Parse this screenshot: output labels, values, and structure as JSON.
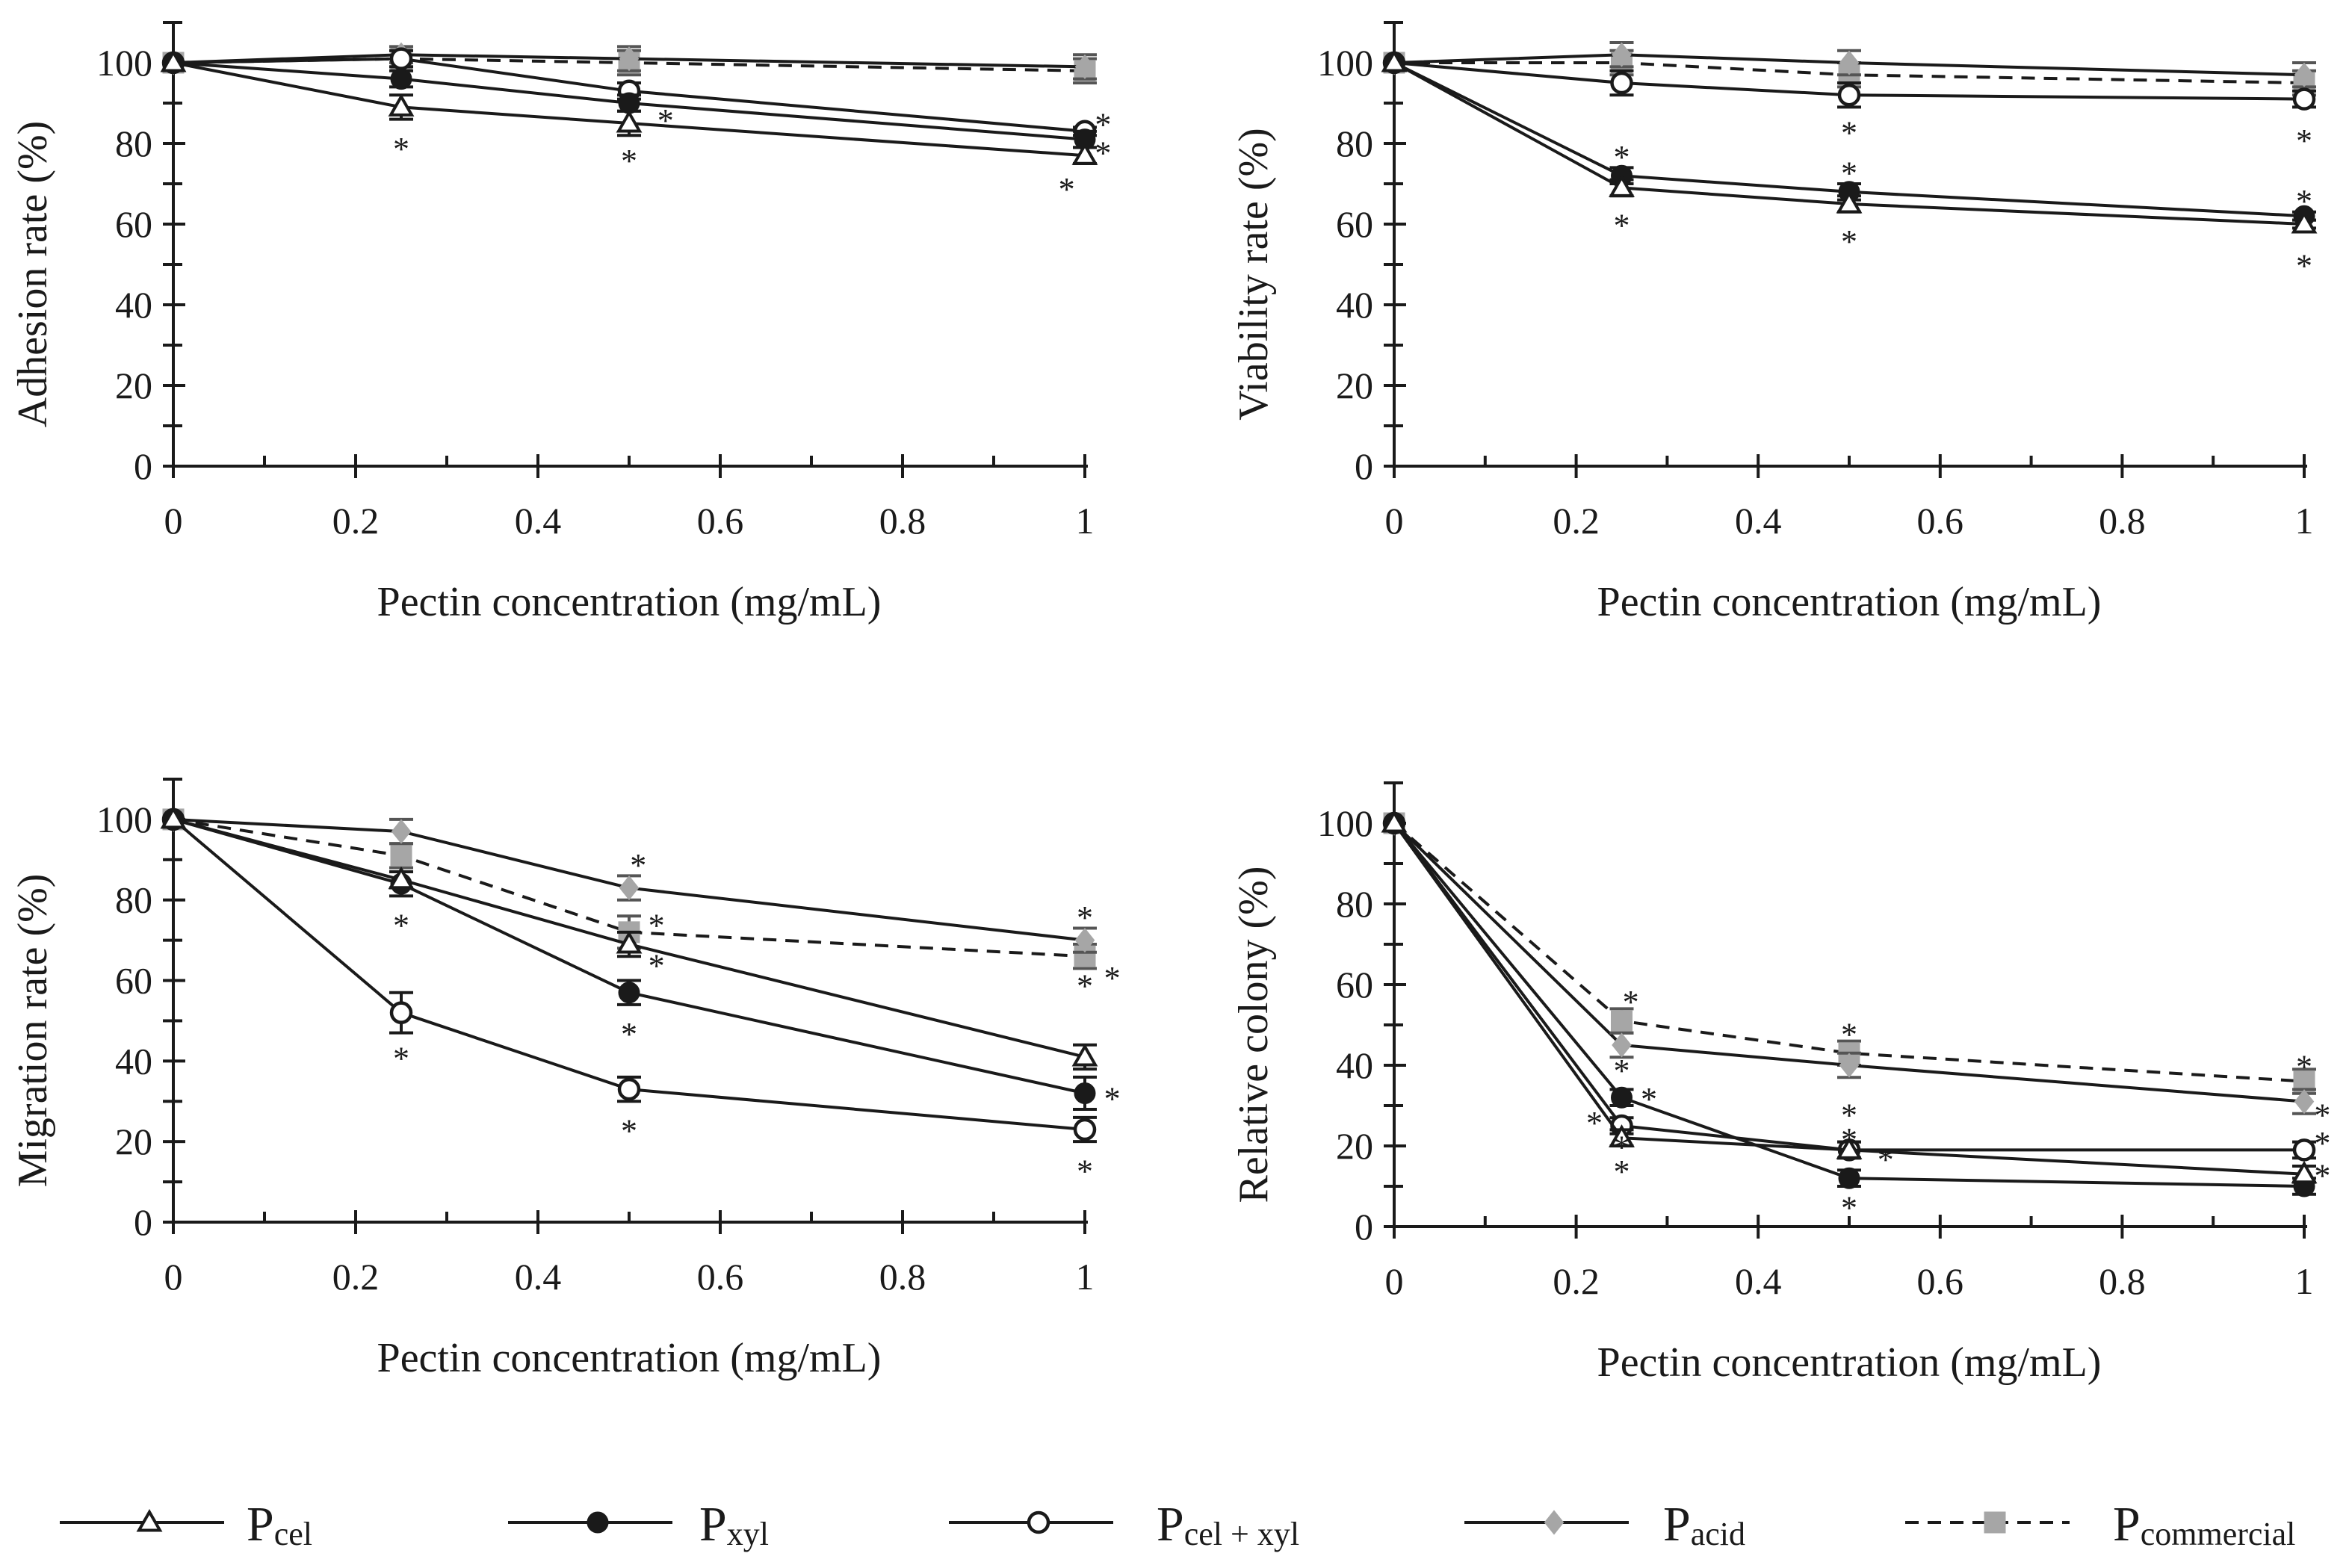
{
  "colors": {
    "black": "#1a1a1a",
    "gray": "#a6a6a6",
    "white": "#ffffff"
  },
  "series_defs": [
    {
      "key": "cel",
      "legend_main": "P",
      "legend_sub": "cel",
      "marker": "triangle-open",
      "line": "solid",
      "color": "#1a1a1a"
    },
    {
      "key": "xyl",
      "legend_main": "P",
      "legend_sub": "xyl",
      "marker": "circle-filled",
      "line": "solid",
      "color": "#1a1a1a"
    },
    {
      "key": "celxyl",
      "legend_main": "P",
      "legend_sub": "cel + xyl",
      "marker": "circle-open",
      "line": "solid",
      "color": "#1a1a1a"
    },
    {
      "key": "acid",
      "legend_main": "P",
      "legend_sub": "acid",
      "marker": "diamond-gray",
      "line": "solid",
      "color": "#a6a6a6"
    },
    {
      "key": "commercial",
      "legend_main": "P",
      "legend_sub": "commercial",
      "marker": "square-gray",
      "line": "dashed",
      "color": "#a6a6a6"
    }
  ],
  "chart_data": [
    {
      "type": "line",
      "ylabel": "Adhesion rate (%)",
      "xlabel": "Pectin concentration (mg/mL)",
      "x": [
        0,
        0.25,
        0.5,
        1
      ],
      "xlim": [
        0,
        1
      ],
      "ylim": [
        0,
        110
      ],
      "xticks": [
        "0",
        "0.2",
        "0.4",
        "0.6",
        "0.8",
        "1"
      ],
      "yticks": [
        "0",
        "20",
        "40",
        "60",
        "80",
        "100"
      ],
      "significance_mark": "*",
      "series": [
        {
          "key": "cel",
          "values": [
            100,
            89,
            85,
            77
          ],
          "errors": [
            0,
            3,
            3,
            2
          ]
        },
        {
          "key": "xyl",
          "values": [
            100,
            96,
            90,
            81
          ],
          "errors": [
            0,
            2,
            2,
            2
          ]
        },
        {
          "key": "celxyl",
          "values": [
            100,
            101,
            93,
            83
          ],
          "errors": [
            0,
            2,
            2,
            1
          ]
        },
        {
          "key": "acid",
          "values": [
            100,
            102,
            101,
            99
          ],
          "errors": [
            0,
            2,
            3,
            3
          ]
        },
        {
          "key": "commercial",
          "values": [
            100,
            101,
            100,
            98
          ],
          "errors": [
            0,
            2,
            3,
            3
          ]
        }
      ],
      "stars": [
        {
          "x": 0.25,
          "y": 80
        },
        {
          "x": 0.5,
          "y": 77
        },
        {
          "x": 0.54,
          "y": 87
        },
        {
          "x": 0.98,
          "y": 70
        },
        {
          "x": 1.02,
          "y": 86
        },
        {
          "x": 1.02,
          "y": 79
        }
      ]
    },
    {
      "type": "line",
      "ylabel": "Viability rate (%)",
      "xlabel": "Pectin concentration (mg/mL)",
      "x": [
        0,
        0.25,
        0.5,
        1
      ],
      "xlim": [
        0,
        1
      ],
      "ylim": [
        0,
        110
      ],
      "xticks": [
        "0",
        "0.2",
        "0.4",
        "0.6",
        "0.8",
        "1"
      ],
      "yticks": [
        "0",
        "20",
        "40",
        "60",
        "80",
        "100"
      ],
      "significance_mark": "*",
      "series": [
        {
          "key": "cel",
          "values": [
            100,
            69,
            65,
            60
          ],
          "errors": [
            0,
            2,
            2,
            1
          ]
        },
        {
          "key": "xyl",
          "values": [
            100,
            72,
            68,
            62
          ],
          "errors": [
            0,
            2,
            2,
            1
          ]
        },
        {
          "key": "celxyl",
          "values": [
            100,
            95,
            92,
            91
          ],
          "errors": [
            0,
            3,
            3,
            2
          ]
        },
        {
          "key": "acid",
          "values": [
            100,
            102,
            100,
            97
          ],
          "errors": [
            0,
            3,
            3,
            3
          ]
        },
        {
          "key": "commercial",
          "values": [
            100,
            100,
            97,
            95
          ],
          "errors": [
            0,
            3,
            3,
            3
          ]
        }
      ],
      "stars": [
        {
          "x": 0.25,
          "y": 78
        },
        {
          "x": 0.25,
          "y": 61
        },
        {
          "x": 0.5,
          "y": 84
        },
        {
          "x": 0.5,
          "y": 74
        },
        {
          "x": 0.5,
          "y": 57
        },
        {
          "x": 1,
          "y": 82
        },
        {
          "x": 1,
          "y": 67
        },
        {
          "x": 1,
          "y": 51
        }
      ]
    },
    {
      "type": "line",
      "ylabel": "Migration rate (%)",
      "xlabel": "Pectin concentration (mg/mL)",
      "x": [
        0,
        0.25,
        0.5,
        1
      ],
      "xlim": [
        0,
        1
      ],
      "ylim": [
        0,
        110
      ],
      "xticks": [
        "0",
        "0.2",
        "0.4",
        "0.6",
        "0.8",
        "1"
      ],
      "yticks": [
        "0",
        "20",
        "40",
        "60",
        "80",
        "100"
      ],
      "significance_mark": "*",
      "series": [
        {
          "key": "cel",
          "values": [
            100,
            85,
            69,
            41
          ],
          "errors": [
            0,
            2,
            3,
            3
          ]
        },
        {
          "key": "xyl",
          "values": [
            100,
            84,
            57,
            32
          ],
          "errors": [
            0,
            3,
            3,
            4
          ]
        },
        {
          "key": "celxyl",
          "values": [
            100,
            52,
            33,
            23
          ],
          "errors": [
            0,
            5,
            3,
            3
          ]
        },
        {
          "key": "acid",
          "values": [
            100,
            97,
            83,
            70
          ],
          "errors": [
            0,
            3,
            3,
            3
          ]
        },
        {
          "key": "commercial",
          "values": [
            100,
            91,
            72,
            66
          ],
          "errors": [
            0,
            3,
            4,
            3
          ]
        }
      ],
      "stars": [
        {
          "x": 0.25,
          "y": 75
        },
        {
          "x": 0.25,
          "y": 42
        },
        {
          "x": 0.51,
          "y": 90
        },
        {
          "x": 0.53,
          "y": 75
        },
        {
          "x": 0.53,
          "y": 65
        },
        {
          "x": 0.5,
          "y": 48
        },
        {
          "x": 0.5,
          "y": 24
        },
        {
          "x": 1,
          "y": 77
        },
        {
          "x": 1,
          "y": 60
        },
        {
          "x": 1.03,
          "y": 62
        },
        {
          "x": 1.03,
          "y": 32
        },
        {
          "x": 1,
          "y": 14
        }
      ]
    },
    {
      "type": "line",
      "ylabel": "Relative colony (%)",
      "xlabel": "Pectin concentration (mg/mL)",
      "x": [
        0,
        0.25,
        0.5,
        1
      ],
      "xlim": [
        0,
        1
      ],
      "ylim": [
        0,
        110
      ],
      "xticks": [
        "0",
        "0.2",
        "0.4",
        "0.6",
        "0.8",
        "1"
      ],
      "yticks": [
        "0",
        "20",
        "40",
        "60",
        "80",
        "100"
      ],
      "significance_mark": "*",
      "series": [
        {
          "key": "cel",
          "values": [
            100,
            22,
            19,
            13
          ],
          "errors": [
            0,
            2,
            2,
            2
          ]
        },
        {
          "key": "xyl",
          "values": [
            100,
            32,
            12,
            10
          ],
          "errors": [
            0,
            2,
            2,
            2
          ]
        },
        {
          "key": "celxyl",
          "values": [
            100,
            25,
            19,
            19
          ],
          "errors": [
            0,
            2,
            2,
            2
          ]
        },
        {
          "key": "acid",
          "values": [
            100,
            45,
            40,
            31
          ],
          "errors": [
            0,
            3,
            3,
            3
          ]
        },
        {
          "key": "commercial",
          "values": [
            100,
            51,
            43,
            36
          ],
          "errors": [
            0,
            3,
            3,
            3
          ]
        }
      ],
      "stars": [
        {
          "x": 0.26,
          "y": 57
        },
        {
          "x": 0.25,
          "y": 40
        },
        {
          "x": 0.28,
          "y": 33
        },
        {
          "x": 0.22,
          "y": 27
        },
        {
          "x": 0.25,
          "y": 21
        },
        {
          "x": 0.25,
          "y": 15
        },
        {
          "x": 0.5,
          "y": 49
        },
        {
          "x": 0.5,
          "y": 29
        },
        {
          "x": 0.5,
          "y": 23
        },
        {
          "x": 0.54,
          "y": 18
        },
        {
          "x": 0.5,
          "y": 6
        },
        {
          "x": 1,
          "y": 41
        },
        {
          "x": 1.02,
          "y": 29
        },
        {
          "x": 1.02,
          "y": 22
        },
        {
          "x": 1.02,
          "y": 14
        }
      ]
    }
  ]
}
